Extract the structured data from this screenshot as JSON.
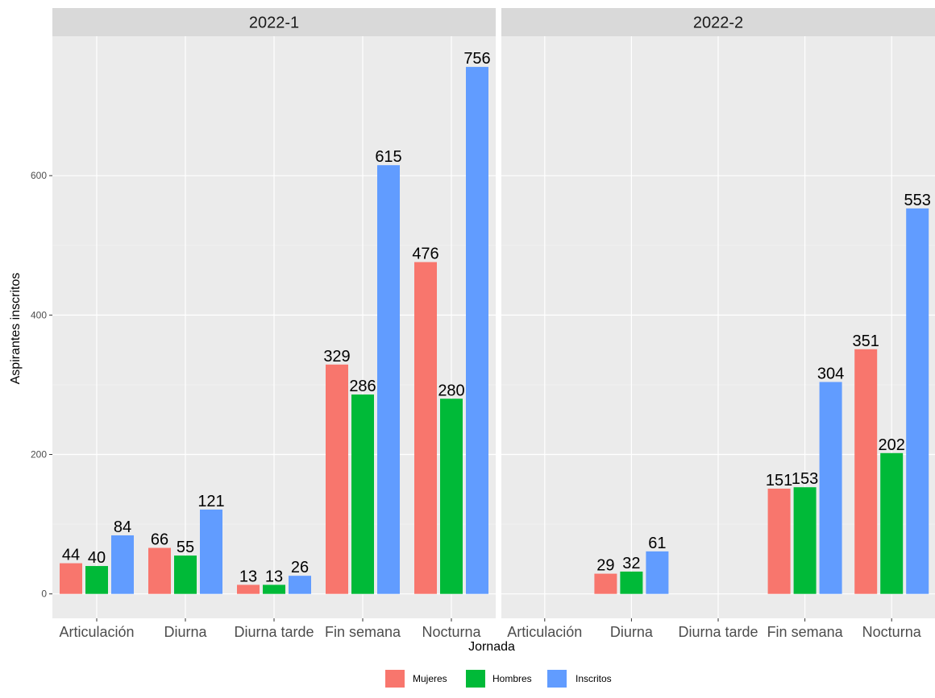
{
  "chart_data": {
    "type": "bar",
    "xlabel": "Jornada",
    "ylabel": "Aspirantes inscritos",
    "ylim": [
      -35,
      800
    ],
    "yticks": [
      0,
      200,
      400,
      600
    ],
    "grid": true,
    "legend_position": "bottom",
    "categories": [
      "Articulación",
      "Diurna",
      "Diurna tarde",
      "Fin semana",
      "Nocturna"
    ],
    "colors": {
      "Mujeres": "#F8766D",
      "Hombres": "#00BA38",
      "Inscritos": "#619CFF"
    },
    "panels": [
      {
        "title": "2022-1",
        "series": [
          {
            "name": "Mujeres",
            "values": [
              44,
              66,
              13,
              329,
              476
            ]
          },
          {
            "name": "Hombres",
            "values": [
              40,
              55,
              13,
              286,
              280
            ]
          },
          {
            "name": "Inscritos",
            "values": [
              84,
              121,
              26,
              615,
              756
            ]
          }
        ]
      },
      {
        "title": "2022-2",
        "series": [
          {
            "name": "Mujeres",
            "values": [
              null,
              29,
              null,
              151,
              351
            ]
          },
          {
            "name": "Hombres",
            "values": [
              null,
              32,
              null,
              153,
              202
            ]
          },
          {
            "name": "Inscritos",
            "values": [
              null,
              61,
              null,
              304,
              553
            ]
          }
        ]
      }
    ],
    "legend": [
      "Mujeres",
      "Hombres",
      "Inscritos"
    ]
  }
}
